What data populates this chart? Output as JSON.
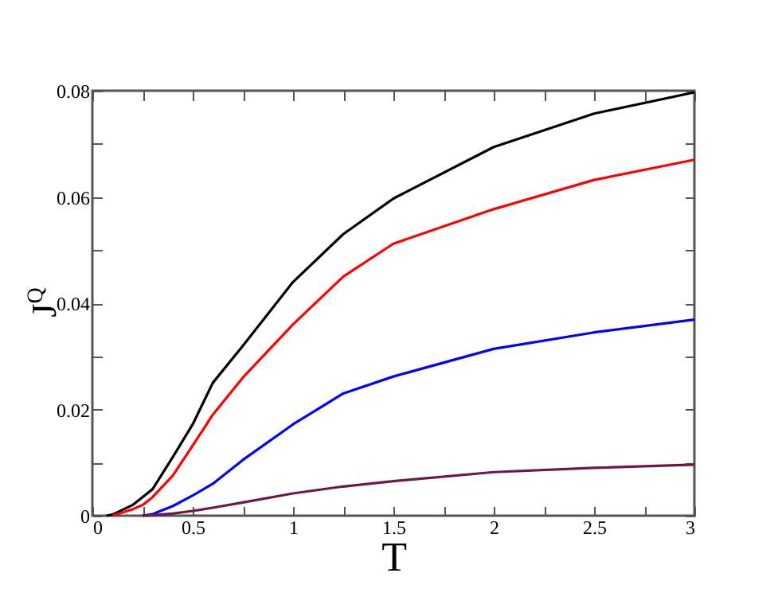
{
  "chart_data": {
    "type": "line",
    "xlabel": "T",
    "ylabel": "J$^{Q}$",
    "xlim": [
      0,
      3
    ],
    "ylim": [
      0,
      0.08
    ],
    "xticks": [
      0,
      {
        "value": 0.25,
        "label": null
      },
      0.5,
      {
        "value": 0.75,
        "label": null
      },
      1,
      {
        "value": 1.25,
        "label": null
      },
      1.5,
      {
        "value": 1.75,
        "label": null
      },
      2,
      {
        "value": 2.25,
        "label": null
      },
      2.5,
      {
        "value": 2.75,
        "label": null
      },
      3
    ],
    "yticks": [
      0,
      {
        "value": 0.01,
        "label": null
      },
      0.02,
      {
        "value": 0.03,
        "label": null
      },
      0.04,
      {
        "value": 0.05,
        "label": null
      },
      0.06,
      {
        "value": 0.07,
        "label": null
      },
      0.08
    ],
    "grid": false,
    "legend": false,
    "line_style": "solid",
    "marker": "none",
    "x": [
      0.07,
      0.1,
      0.2,
      0.25,
      0.3,
      0.4,
      0.5,
      0.6,
      0.75,
      1,
      1.25,
      1.5,
      2,
      2.5,
      3
    ],
    "series": [
      {
        "color": "#000000",
        "values": [
          0,
          0.0002,
          0.002,
          0.0035,
          0.005,
          0.011,
          0.0172,
          0.025,
          0.032,
          0.044,
          0.053,
          0.0597,
          0.0694,
          0.0757,
          0.0797
        ]
      },
      {
        "color": "#ff0000",
        "values": [
          null,
          0,
          0.0012,
          0.002,
          0.0035,
          0.0075,
          0.0132,
          0.019,
          0.026,
          0.036,
          0.045,
          0.0512,
          0.0577,
          0.0632,
          0.067
        ]
      },
      {
        "color": "#0000ff",
        "values": [
          null,
          null,
          null,
          0,
          0.0003,
          0.0018,
          0.0038,
          0.006,
          0.0105,
          0.0172,
          0.023,
          0.0262,
          0.0314,
          0.0345,
          0.0369
        ]
      },
      {
        "color": "#6e1749",
        "values": [
          null,
          null,
          null,
          0,
          0.0001,
          0.0004,
          0.0009,
          0.0015,
          0.0025,
          0.0042,
          0.0055,
          0.0065,
          0.0082,
          0.009,
          0.0096
        ]
      }
    ]
  }
}
